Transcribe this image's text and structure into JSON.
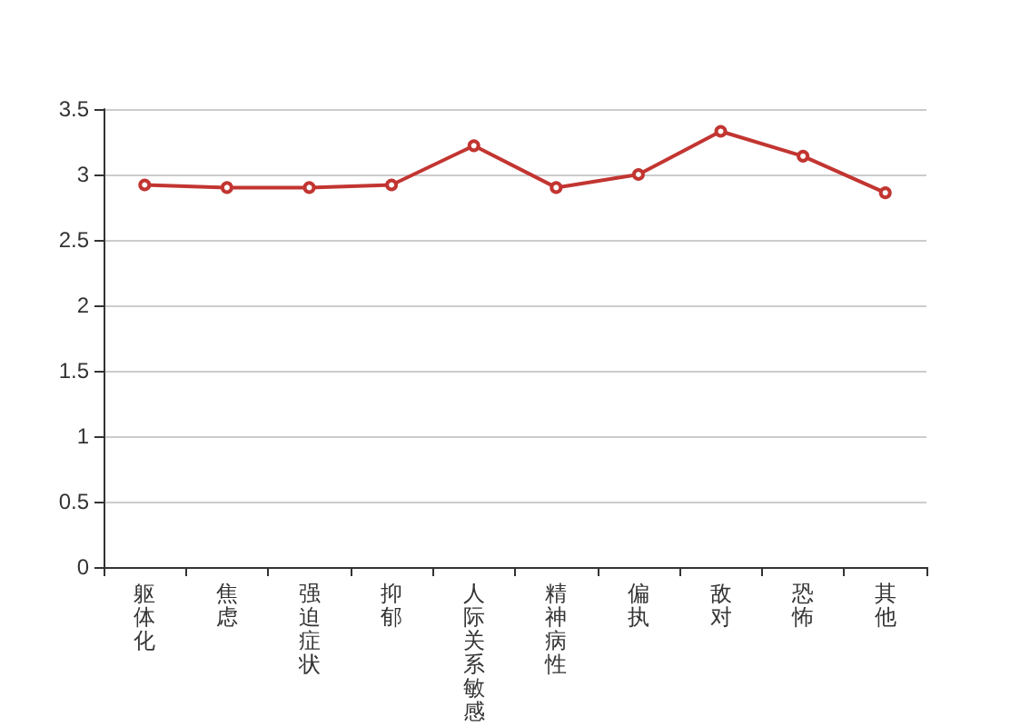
{
  "chart_data": {
    "type": "line",
    "categories": [
      "躯体化",
      "焦虑",
      "强迫症状",
      "抑郁",
      "人际关系敏感",
      "精神病性",
      "偏执",
      "敌对",
      "恐怖",
      "其他"
    ],
    "series": [
      {
        "color": "#c23531",
        "values": [
          2.92,
          2.9,
          2.9,
          2.92,
          3.22,
          2.9,
          3.0,
          3.33,
          3.14,
          2.86
        ]
      }
    ],
    "ylim": [
      0,
      3.5
    ],
    "yticks": [
      0,
      0.5,
      1,
      1.5,
      2,
      2.5,
      3,
      3.5
    ],
    "grid": "y",
    "marker": "circle",
    "line_style": "solid"
  }
}
